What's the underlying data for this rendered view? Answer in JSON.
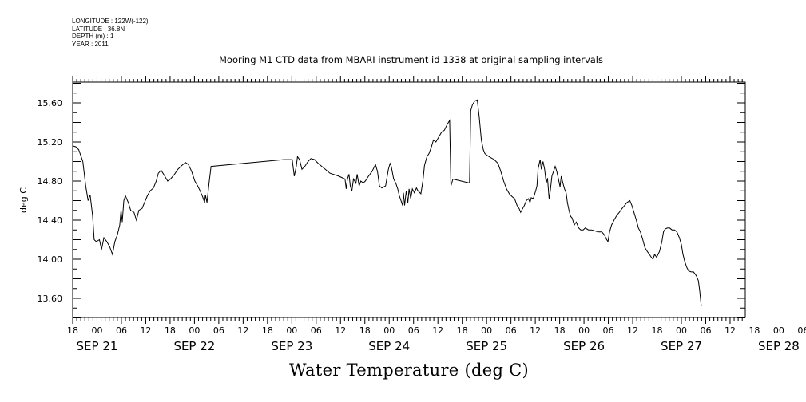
{
  "header": {
    "longitude": "LONGITUDE : 122W(-122)",
    "latitude": "LATITUDE : 36.8N",
    "depth": "DEPTH (m) : 1",
    "year": "YEAR : 2011"
  },
  "chart_data": {
    "type": "line",
    "title": "Mooring M1 CTD data from MBARI instrument id 1338 at original sampling intervals",
    "xlabel": "Water Temperature (deg C)",
    "ylabel": "deg C",
    "x_units": "hours since SEP 20 18:00 (2011)",
    "xlim": [
      0,
      165
    ],
    "ylim": [
      13.4,
      15.8
    ],
    "y_ticks": [
      "13.60",
      "14.00",
      "14.40",
      "14.80",
      "15.20",
      "15.60"
    ],
    "y_tick_values": [
      13.6,
      14.0,
      14.4,
      14.8,
      15.2,
      15.6
    ],
    "x_hour_labels": [
      "18",
      "00",
      "06",
      "12",
      "18",
      "00",
      "06",
      "12",
      "18",
      "00",
      "06",
      "12",
      "18",
      "00",
      "06",
      "12",
      "18",
      "00",
      "06",
      "12",
      "18",
      "00",
      "06",
      "12",
      "18",
      "00",
      "06",
      "12",
      "18",
      "00",
      "06",
      "12"
    ],
    "x_day_labels": [
      {
        "label": "SEP 21",
        "hour": 6
      },
      {
        "label": "SEP 22",
        "hour": 30
      },
      {
        "label": "SEP 23",
        "hour": 54
      },
      {
        "label": "SEP 24",
        "hour": 78
      },
      {
        "label": "SEP 25",
        "hour": 102
      },
      {
        "label": "SEP 26",
        "hour": 126
      },
      {
        "label": "SEP 27",
        "hour": 150
      },
      {
        "label": "SEP 28",
        "hour": 174
      }
    ],
    "series": [
      {
        "name": "",
        "points": [
          [
            0.0,
            15.16
          ],
          [
            0.8,
            15.15
          ],
          [
            1.5,
            15.12
          ],
          [
            2.5,
            15.0
          ],
          [
            3.2,
            14.75
          ],
          [
            3.8,
            14.6
          ],
          [
            4.3,
            14.66
          ],
          [
            4.9,
            14.45
          ],
          [
            5.3,
            14.2
          ],
          [
            5.8,
            14.18
          ],
          [
            6.6,
            14.2
          ],
          [
            7.1,
            14.1
          ],
          [
            7.7,
            14.22
          ],
          [
            8.4,
            14.18
          ],
          [
            9.1,
            14.13
          ],
          [
            9.8,
            14.05
          ],
          [
            10.4,
            14.18
          ],
          [
            11.0,
            14.25
          ],
          [
            11.6,
            14.35
          ],
          [
            11.9,
            14.5
          ],
          [
            12.2,
            14.38
          ],
          [
            12.6,
            14.6
          ],
          [
            13.0,
            14.65
          ],
          [
            13.7,
            14.58
          ],
          [
            14.3,
            14.5
          ],
          [
            15.1,
            14.48
          ],
          [
            15.7,
            14.4
          ],
          [
            16.3,
            14.5
          ],
          [
            17.1,
            14.52
          ],
          [
            17.7,
            14.58
          ],
          [
            18.4,
            14.65
          ],
          [
            19.1,
            14.7
          ],
          [
            19.9,
            14.73
          ],
          [
            20.6,
            14.8
          ],
          [
            21.1,
            14.88
          ],
          [
            21.8,
            14.91
          ],
          [
            22.7,
            14.85
          ],
          [
            23.4,
            14.8
          ],
          [
            24.1,
            14.82
          ],
          [
            25.1,
            14.87
          ],
          [
            25.9,
            14.92
          ],
          [
            26.9,
            14.96
          ],
          [
            27.8,
            14.99
          ],
          [
            28.5,
            14.97
          ],
          [
            29.3,
            14.9
          ],
          [
            30.1,
            14.8
          ],
          [
            30.8,
            14.75
          ],
          [
            31.4,
            14.7
          ],
          [
            32.0,
            14.64
          ],
          [
            32.5,
            14.58
          ],
          [
            32.7,
            14.66
          ],
          [
            33.1,
            14.58
          ],
          [
            33.6,
            14.78
          ],
          [
            34.1,
            14.95
          ],
          [
            52.0,
            15.02
          ],
          [
            54.1,
            15.02
          ],
          [
            54.6,
            14.85
          ],
          [
            55.1,
            14.95
          ],
          [
            55.4,
            15.05
          ],
          [
            55.9,
            15.02
          ],
          [
            56.5,
            14.92
          ],
          [
            57.2,
            14.95
          ],
          [
            58.0,
            15.0
          ],
          [
            58.7,
            15.03
          ],
          [
            59.6,
            15.02
          ],
          [
            60.5,
            14.98
          ],
          [
            61.7,
            14.94
          ],
          [
            63.4,
            14.88
          ],
          [
            65.6,
            14.85
          ],
          [
            67.1,
            14.82
          ],
          [
            67.4,
            14.72
          ],
          [
            67.7,
            14.82
          ],
          [
            68.1,
            14.87
          ],
          [
            68.4,
            14.75
          ],
          [
            68.8,
            14.7
          ],
          [
            69.2,
            14.82
          ],
          [
            69.8,
            14.78
          ],
          [
            70.1,
            14.87
          ],
          [
            70.6,
            14.75
          ],
          [
            71.0,
            14.8
          ],
          [
            71.6,
            14.78
          ],
          [
            72.1,
            14.8
          ],
          [
            72.9,
            14.85
          ],
          [
            73.8,
            14.9
          ],
          [
            74.6,
            14.97
          ],
          [
            75.1,
            14.9
          ],
          [
            75.6,
            14.75
          ],
          [
            76.2,
            14.73
          ],
          [
            77.1,
            14.75
          ],
          [
            77.8,
            14.92
          ],
          [
            78.2,
            14.98
          ],
          [
            78.5,
            14.95
          ],
          [
            79.1,
            14.82
          ],
          [
            79.6,
            14.78
          ],
          [
            80.1,
            14.72
          ],
          [
            80.5,
            14.65
          ],
          [
            80.9,
            14.6
          ],
          [
            81.3,
            14.55
          ],
          [
            81.5,
            14.68
          ],
          [
            81.8,
            14.55
          ],
          [
            82.2,
            14.7
          ],
          [
            82.6,
            14.58
          ],
          [
            82.9,
            14.72
          ],
          [
            83.3,
            14.62
          ],
          [
            83.7,
            14.72
          ],
          [
            84.2,
            14.68
          ],
          [
            84.7,
            14.73
          ],
          [
            85.1,
            14.7
          ],
          [
            85.8,
            14.67
          ],
          [
            86.3,
            14.8
          ],
          [
            86.7,
            14.96
          ],
          [
            87.3,
            15.05
          ],
          [
            87.8,
            15.08
          ],
          [
            88.4,
            15.15
          ],
          [
            88.9,
            15.22
          ],
          [
            89.5,
            15.2
          ],
          [
            90.2,
            15.25
          ],
          [
            90.9,
            15.3
          ],
          [
            91.6,
            15.32
          ],
          [
            92.3,
            15.38
          ],
          [
            92.9,
            15.42
          ],
          [
            93.2,
            14.75
          ],
          [
            93.7,
            14.82
          ],
          [
            97.8,
            14.78
          ],
          [
            98.1,
            15.52
          ],
          [
            98.5,
            15.58
          ],
          [
            99.1,
            15.62
          ],
          [
            99.7,
            15.63
          ],
          [
            100.2,
            15.45
          ],
          [
            100.7,
            15.22
          ],
          [
            101.2,
            15.12
          ],
          [
            101.6,
            15.08
          ],
          [
            102.2,
            15.06
          ],
          [
            103.0,
            15.04
          ],
          [
            103.9,
            15.02
          ],
          [
            104.8,
            14.98
          ],
          [
            105.5,
            14.9
          ],
          [
            106.2,
            14.8
          ],
          [
            106.9,
            14.72
          ],
          [
            107.6,
            14.67
          ],
          [
            108.3,
            14.64
          ],
          [
            108.9,
            14.62
          ],
          [
            109.5,
            14.55
          ],
          [
            110.0,
            14.52
          ],
          [
            110.4,
            14.48
          ],
          [
            110.9,
            14.52
          ],
          [
            111.3,
            14.55
          ],
          [
            111.8,
            14.6
          ],
          [
            112.3,
            14.62
          ],
          [
            112.7,
            14.58
          ],
          [
            113.0,
            14.63
          ],
          [
            113.5,
            14.62
          ],
          [
            113.8,
            14.66
          ],
          [
            114.1,
            14.7
          ],
          [
            114.4,
            14.75
          ],
          [
            114.7,
            14.93
          ],
          [
            115.2,
            15.02
          ],
          [
            115.5,
            14.92
          ],
          [
            115.9,
            15.0
          ],
          [
            116.3,
            14.92
          ],
          [
            116.7,
            14.78
          ],
          [
            117.0,
            14.83
          ],
          [
            117.4,
            14.62
          ],
          [
            117.7,
            14.7
          ],
          [
            118.1,
            14.85
          ],
          [
            118.5,
            14.9
          ],
          [
            118.9,
            14.95
          ],
          [
            119.3,
            14.9
          ],
          [
            119.7,
            14.82
          ],
          [
            120.1,
            14.74
          ],
          [
            120.4,
            14.85
          ],
          [
            120.8,
            14.78
          ],
          [
            121.2,
            14.72
          ],
          [
            121.6,
            14.68
          ],
          [
            121.9,
            14.58
          ],
          [
            122.3,
            14.5
          ],
          [
            122.7,
            14.44
          ],
          [
            123.1,
            14.42
          ],
          [
            123.6,
            14.35
          ],
          [
            124.1,
            14.38
          ],
          [
            124.7,
            14.32
          ],
          [
            125.2,
            14.3
          ],
          [
            125.8,
            14.3
          ],
          [
            126.3,
            14.32
          ],
          [
            127.1,
            14.3
          ],
          [
            127.9,
            14.3
          ],
          [
            128.7,
            14.29
          ],
          [
            129.6,
            14.28
          ],
          [
            130.4,
            14.28
          ],
          [
            131.0,
            14.25
          ],
          [
            131.6,
            14.2
          ],
          [
            131.9,
            14.18
          ],
          [
            132.3,
            14.28
          ],
          [
            132.8,
            14.35
          ],
          [
            133.4,
            14.4
          ],
          [
            134.1,
            14.45
          ],
          [
            134.7,
            14.48
          ],
          [
            135.4,
            14.52
          ],
          [
            136.0,
            14.55
          ],
          [
            136.6,
            14.58
          ],
          [
            137.3,
            14.6
          ],
          [
            137.8,
            14.55
          ],
          [
            138.3,
            14.48
          ],
          [
            138.9,
            14.4
          ],
          [
            139.4,
            14.32
          ],
          [
            139.9,
            14.28
          ],
          [
            140.5,
            14.2
          ],
          [
            141.0,
            14.12
          ],
          [
            141.6,
            14.08
          ],
          [
            142.1,
            14.05
          ],
          [
            142.6,
            14.02
          ],
          [
            143.0,
            14.0
          ],
          [
            143.4,
            14.05
          ],
          [
            143.9,
            14.02
          ],
          [
            144.6,
            14.08
          ],
          [
            145.2,
            14.18
          ],
          [
            145.6,
            14.28
          ],
          [
            146.0,
            14.31
          ],
          [
            146.6,
            14.32
          ],
          [
            147.1,
            14.32
          ],
          [
            147.7,
            14.3
          ],
          [
            148.3,
            14.3
          ],
          [
            148.9,
            14.28
          ],
          [
            149.5,
            14.22
          ],
          [
            150.0,
            14.15
          ],
          [
            150.4,
            14.05
          ],
          [
            150.8,
            13.98
          ],
          [
            151.3,
            13.92
          ],
          [
            151.8,
            13.88
          ],
          [
            152.4,
            13.87
          ],
          [
            153.0,
            13.87
          ],
          [
            153.7,
            13.83
          ],
          [
            154.2,
            13.78
          ],
          [
            154.5,
            13.68
          ],
          [
            154.7,
            13.6
          ],
          [
            154.9,
            13.52
          ]
        ]
      }
    ]
  }
}
